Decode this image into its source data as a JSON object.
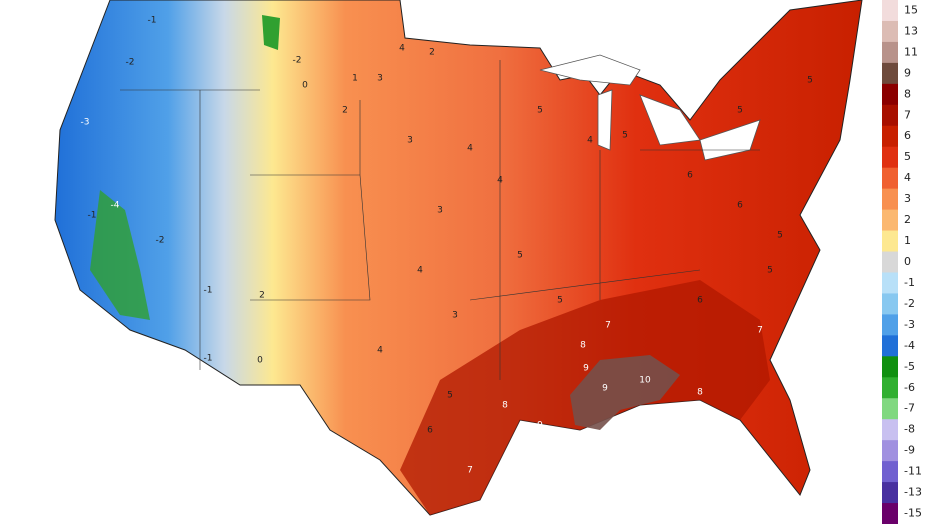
{
  "legend": {
    "labels": [
      15,
      13,
      11,
      9,
      8,
      7,
      6,
      5,
      4,
      3,
      2,
      1,
      0,
      -1,
      -2,
      -3,
      -4,
      -5,
      -6,
      -7,
      -8,
      -9,
      -11,
      -13,
      -15
    ],
    "colors": [
      "#f2dcdc",
      "#dcbcb4",
      "#b8928a",
      "#6e4a3c",
      "#8b0000",
      "#a81000",
      "#c82000",
      "#e03010",
      "#f06030",
      "#f89050",
      "#fbb870",
      "#fde890",
      "#d8d8d8",
      "#b8e0f8",
      "#88c8f0",
      "#50a0e8",
      "#2070d8",
      "#109010",
      "#30b030",
      "#80d880",
      "#c8c0f0",
      "#a090e0",
      "#7060d0",
      "#4830a0",
      "#6a006a"
    ]
  },
  "map_labels": [
    -1,
    -2,
    -3,
    -4,
    -1,
    -2,
    -1,
    -1,
    0,
    2,
    0,
    -2,
    1,
    2,
    3,
    2,
    4,
    3,
    4,
    3,
    4,
    3,
    4,
    5,
    6,
    7,
    8,
    9,
    4,
    5,
    5,
    5,
    4,
    5,
    6,
    6,
    5,
    7,
    8,
    9,
    10,
    9,
    8,
    7,
    6,
    5,
    5,
    5
  ]
}
